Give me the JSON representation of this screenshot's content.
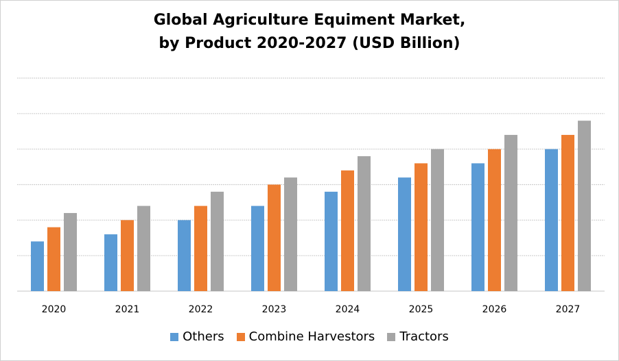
{
  "chart_data": {
    "type": "bar",
    "title_lines": [
      "Global Agriculture Equiment Market,",
      "by Product 2020-2027 (USD Billion)"
    ],
    "categories": [
      "2020",
      "2021",
      "2022",
      "2023",
      "2024",
      "2025",
      "2026",
      "2027"
    ],
    "ylim": [
      0,
      6
    ],
    "y_axis_labels_shown": false,
    "grid": true,
    "legend": "bottom",
    "series": [
      {
        "name": "Others",
        "color": "#5B9BD5",
        "values": [
          1.4,
          1.6,
          2.0,
          2.4,
          2.8,
          3.2,
          3.6,
          4.0
        ]
      },
      {
        "name": "Combine Harvestors",
        "color": "#ED7D31",
        "values": [
          1.8,
          2.0,
          2.4,
          3.0,
          3.4,
          3.6,
          4.0,
          4.4
        ]
      },
      {
        "name": "Tractors",
        "color": "#A5A5A5",
        "values": [
          2.2,
          2.4,
          2.8,
          3.2,
          3.8,
          4.0,
          4.4,
          4.8
        ]
      }
    ]
  }
}
